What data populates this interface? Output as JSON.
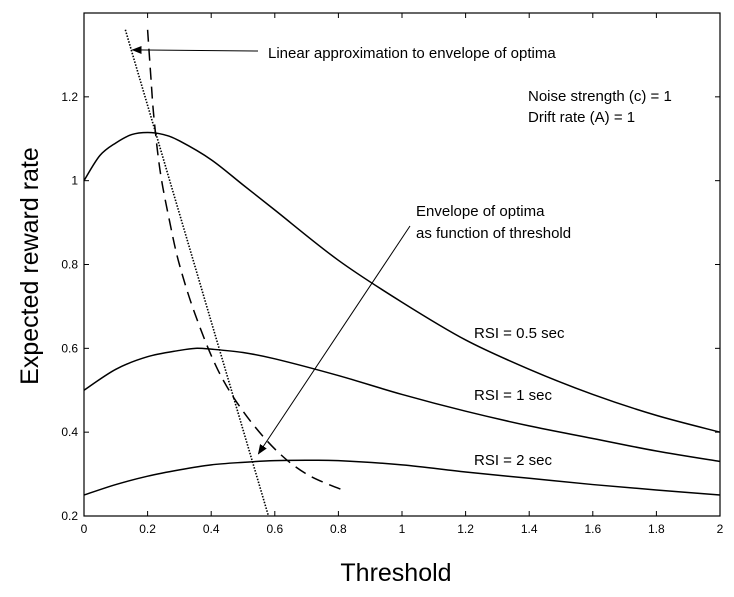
{
  "chart_data": {
    "type": "line",
    "xlabel": "Threshold",
    "ylabel": "Expected reward rate",
    "xlim": [
      0,
      2
    ],
    "ylim": [
      0.2,
      1.4
    ],
    "grid": false,
    "x_ticks": [
      "0",
      "0.2",
      "0.4",
      "0.6",
      "0.8",
      "1",
      "1.2",
      "1.4",
      "1.6",
      "1.8",
      "2"
    ],
    "y_ticks": [
      "0.2",
      "0.4",
      "0.6",
      "0.8",
      "1",
      "1.2"
    ],
    "x_tick_values": [
      0,
      0.2,
      0.4,
      0.6,
      0.8,
      1.0,
      1.2,
      1.4,
      1.6,
      1.8,
      2.0
    ],
    "y_tick_values": [
      0.2,
      0.4,
      0.6,
      0.8,
      1.0,
      1.2
    ],
    "series": [
      {
        "name": "RSI = 0.5 sec",
        "style": "solid",
        "x": [
          0,
          0.05,
          0.1,
          0.15,
          0.2,
          0.25,
          0.3,
          0.4,
          0.5,
          0.6,
          0.8,
          1.0,
          1.2,
          1.4,
          1.6,
          1.8,
          2.0
        ],
        "y": [
          1.0,
          1.06,
          1.09,
          1.11,
          1.115,
          1.11,
          1.095,
          1.05,
          0.99,
          0.93,
          0.81,
          0.71,
          0.62,
          0.55,
          0.49,
          0.44,
          0.4
        ]
      },
      {
        "name": "RSI = 1 sec",
        "style": "solid",
        "x": [
          0,
          0.1,
          0.2,
          0.3,
          0.35,
          0.4,
          0.5,
          0.6,
          0.8,
          1.0,
          1.2,
          1.4,
          1.6,
          1.8,
          2.0
        ],
        "y": [
          0.5,
          0.55,
          0.58,
          0.595,
          0.6,
          0.598,
          0.59,
          0.575,
          0.535,
          0.49,
          0.45,
          0.415,
          0.385,
          0.355,
          0.33
        ]
      },
      {
        "name": "RSI = 2 sec",
        "style": "solid",
        "x": [
          0,
          0.1,
          0.2,
          0.3,
          0.4,
          0.5,
          0.6,
          0.7,
          0.8,
          1.0,
          1.2,
          1.4,
          1.6,
          1.8,
          2.0
        ],
        "y": [
          0.25,
          0.275,
          0.295,
          0.31,
          0.322,
          0.328,
          0.332,
          0.333,
          0.332,
          0.322,
          0.305,
          0.29,
          0.275,
          0.262,
          0.25
        ]
      },
      {
        "name": "Envelope of optima",
        "style": "dashed",
        "x": [
          0.2,
          0.21,
          0.22,
          0.24,
          0.27,
          0.3,
          0.35,
          0.42,
          0.5,
          0.6,
          0.7,
          0.82
        ],
        "y": [
          1.36,
          1.25,
          1.15,
          1.02,
          0.9,
          0.8,
          0.68,
          0.55,
          0.45,
          0.36,
          0.3,
          0.26
        ]
      },
      {
        "name": "Linear approximation to envelope of optima",
        "style": "dotted",
        "x": [
          0.13,
          0.58
        ],
        "y": [
          1.36,
          0.2
        ]
      }
    ],
    "annotations": [
      {
        "id": "linear-approx",
        "text": "Linear approximation to envelope of optima",
        "arrow_to": [
          0.14,
          1.3
        ]
      },
      {
        "id": "params-noise",
        "text": "Noise strength (c) = 1"
      },
      {
        "id": "params-drift",
        "text": "Drift rate (A) = 1"
      },
      {
        "id": "envelope-1",
        "text": "Envelope of optima"
      },
      {
        "id": "envelope-2",
        "text": "as function of threshold",
        "arrow_to": [
          0.58,
          0.37
        ]
      },
      {
        "id": "rsi-05",
        "text": "RSI = 0.5 sec"
      },
      {
        "id": "rsi-1",
        "text": "RSI = 1 sec"
      },
      {
        "id": "rsi-2",
        "text": "RSI = 2 sec"
      }
    ]
  }
}
